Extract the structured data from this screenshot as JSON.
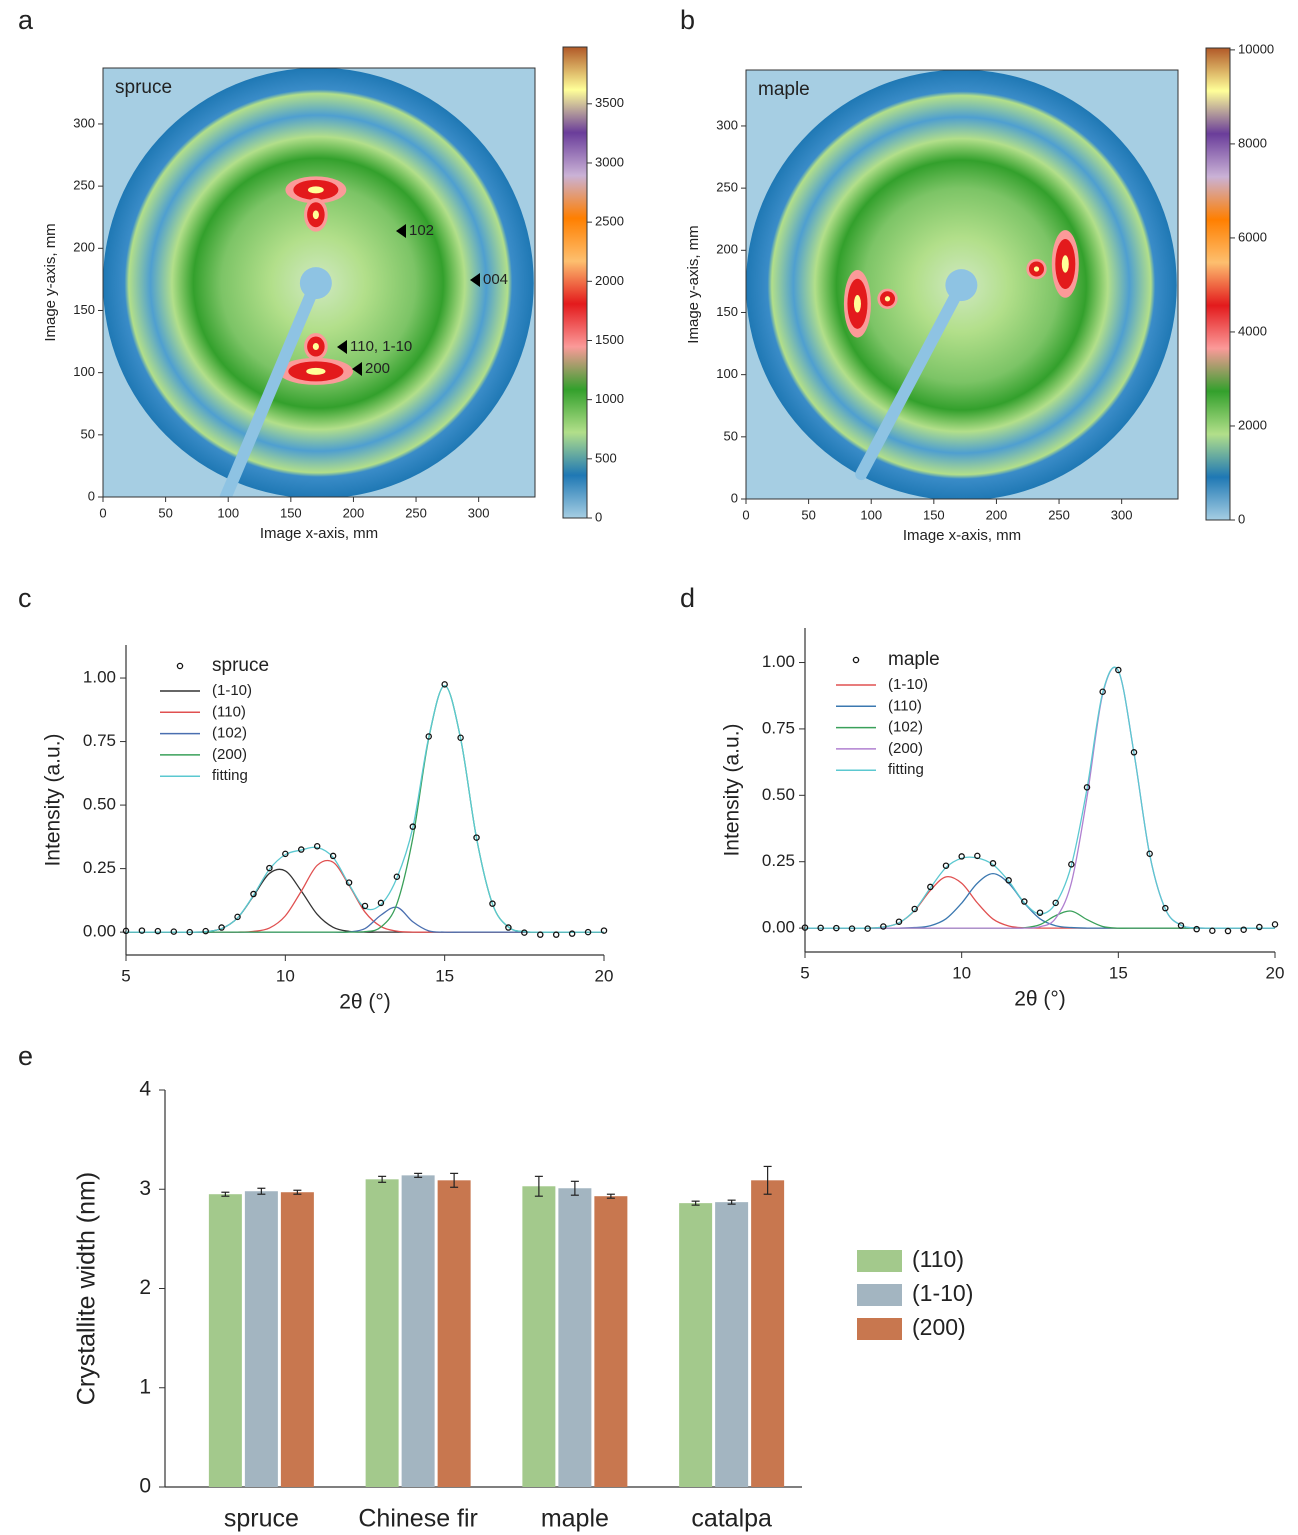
{
  "chart_data": [
    {
      "type": "heatmap",
      "panel": "a",
      "label": "spruce",
      "xlabel": "Image x-axis, mm",
      "ylabel": "Image y-axis, mm",
      "xlim": [
        0,
        345
      ],
      "xticks": [
        0,
        50,
        100,
        150,
        200,
        250,
        300
      ],
      "ylim": [
        0,
        345
      ],
      "yticks": [
        0,
        50,
        100,
        150,
        200,
        250,
        300
      ],
      "annotations": [
        "102",
        "004",
        "110, 1-10",
        "200"
      ],
      "colorbar": {
        "lim": [
          0,
          3980
        ],
        "ticks": [
          0,
          500,
          1000,
          1500,
          2000,
          2500,
          3000,
          3500
        ],
        "colors": [
          "#a6cee3",
          "#1f78b4",
          "#b2df8a",
          "#33a02c",
          "#fb9a99",
          "#e31a1c",
          "#fdbf6f",
          "#ff7f00",
          "#cab2d6",
          "#6a3d9a",
          "#ffff99",
          "#b15928"
        ]
      }
    },
    {
      "type": "heatmap",
      "panel": "b",
      "label": "maple",
      "xlabel": "Image x-axis, mm",
      "ylabel": "Image y-axis, mm",
      "xlim": [
        0,
        345
      ],
      "xticks": [
        0,
        50,
        100,
        150,
        200,
        250,
        300
      ],
      "ylim": [
        0,
        345
      ],
      "yticks": [
        0,
        50,
        100,
        150,
        200,
        250,
        300
      ],
      "annotations": [],
      "colorbar": {
        "lim": [
          0,
          10040
        ],
        "ticks": [
          0,
          2000,
          4000,
          6000,
          8000,
          10000
        ],
        "colors": [
          "#a6cee3",
          "#1f78b4",
          "#b2df8a",
          "#33a02c",
          "#fb9a99",
          "#e31a1c",
          "#fdbf6f",
          "#ff7f00",
          "#cab2d6",
          "#6a3d9a",
          "#ffff99",
          "#b15928"
        ]
      }
    },
    {
      "type": "line",
      "panel": "c",
      "xlabel": "2θ (°)",
      "ylabel": "Intensity (a.u.)",
      "x": [
        5,
        5.5,
        6,
        6.5,
        7,
        7.5,
        8,
        8.5,
        9,
        9.5,
        10,
        10.5,
        11,
        11.5,
        12,
        12.5,
        13,
        13.5,
        14,
        14.5,
        15,
        15.5,
        16,
        16.5,
        17,
        17.5,
        18,
        18.5,
        19,
        19.5,
        20
      ],
      "xlim": [
        5,
        20
      ],
      "xticks": [
        5,
        10,
        15,
        20
      ],
      "ylim": [
        -0.09,
        1.13
      ],
      "yticks": [
        {
          "value": 0,
          "label": "0.00"
        },
        0.25,
        {
          "value": 0.5,
          "label": "0.50"
        },
        0.75,
        {
          "value": 1,
          "label": "1.00"
        }
      ],
      "series": [
        {
          "name": "spruce",
          "color": "#111111",
          "marker": "circle",
          "values": [
            0.005,
            0.006,
            0.004,
            0.002,
            0.0,
            0.004,
            0.018,
            0.06,
            0.15,
            0.252,
            0.308,
            0.325,
            0.338,
            0.3,
            0.195,
            0.103,
            0.115,
            0.218,
            0.415,
            0.77,
            0.975,
            0.765,
            0.372,
            0.112,
            0.018,
            -0.002,
            -0.01,
            -0.01,
            -0.006,
            0.0,
            0.006
          ]
        },
        {
          "name": "(1-10)",
          "color": "#333333",
          "values": [
            0,
            0,
            0,
            0,
            0,
            0.002,
            0.014,
            0.056,
            0.142,
            0.231,
            0.241,
            0.162,
            0.07,
            0.019,
            0.003,
            0,
            0,
            0,
            0,
            0,
            0,
            0,
            0,
            0,
            0,
            0,
            0,
            0,
            0,
            0,
            0
          ]
        },
        {
          "name": "(110)",
          "color": "#e05050",
          "values": [
            0,
            0,
            0,
            0,
            0,
            0,
            0,
            0,
            0.003,
            0.016,
            0.064,
            0.161,
            0.263,
            0.275,
            0.184,
            0.079,
            0.022,
            0.004,
            0,
            0,
            0,
            0,
            0,
            0,
            0,
            0,
            0,
            0,
            0,
            0,
            0
          ]
        },
        {
          "name": "(102)",
          "color": "#4a6fb0",
          "values": [
            0,
            0,
            0,
            0,
            0,
            0,
            0,
            0,
            0,
            0,
            0,
            0,
            0,
            0,
            0.001,
            0.014,
            0.067,
            0.098,
            0.041,
            0.005,
            0,
            0,
            0,
            0,
            0,
            0,
            0,
            0,
            0,
            0,
            0
          ]
        },
        {
          "name": "(200)",
          "color": "#3aa05a",
          "values": [
            0,
            0,
            0,
            0,
            0,
            0,
            0,
            0,
            0,
            0,
            0,
            0,
            0,
            0,
            0,
            0.002,
            0.02,
            0.111,
            0.37,
            0.762,
            0.97,
            0.762,
            0.37,
            0.111,
            0.02,
            0.002,
            0,
            0,
            0,
            0,
            0
          ]
        },
        {
          "name": "fitting",
          "color": "#5bc8d0",
          "values": [
            0,
            0,
            0,
            0,
            0,
            0.002,
            0.014,
            0.056,
            0.145,
            0.247,
            0.305,
            0.323,
            0.333,
            0.294,
            0.188,
            0.095,
            0.109,
            0.213,
            0.411,
            0.767,
            0.97,
            0.762,
            0.37,
            0.111,
            0.02,
            0.002,
            0,
            0,
            0,
            0,
            0
          ]
        }
      ]
    },
    {
      "type": "line",
      "panel": "d",
      "xlabel": "2θ (°)",
      "ylabel": "Intensity (a.u.)",
      "x": [
        5,
        5.5,
        6,
        6.5,
        7,
        7.5,
        8,
        8.5,
        9,
        9.5,
        10,
        10.5,
        11,
        11.5,
        12,
        12.5,
        13,
        13.5,
        14,
        14.5,
        15,
        15.5,
        16,
        16.5,
        17,
        17.5,
        18,
        18.5,
        19,
        19.5,
        20
      ],
      "xlim": [
        5,
        20
      ],
      "xticks": [
        5,
        10,
        15,
        20
      ],
      "ylim": [
        -0.09,
        1.13
      ],
      "yticks": [
        {
          "value": 0,
          "label": "0.00"
        },
        0.25,
        {
          "value": 0.5,
          "label": "0.50"
        },
        0.75,
        {
          "value": 1,
          "label": "1.00"
        }
      ],
      "series": [
        {
          "name": "maple",
          "color": "#111111",
          "marker": "circle",
          "values": [
            0.002,
            0.001,
            0.0,
            -0.002,
            -0.002,
            0.006,
            0.024,
            0.072,
            0.155,
            0.235,
            0.27,
            0.272,
            0.244,
            0.18,
            0.1,
            0.058,
            0.095,
            0.24,
            0.53,
            0.89,
            0.972,
            0.662,
            0.28,
            0.075,
            0.01,
            -0.004,
            -0.01,
            -0.011,
            -0.006,
            0.004,
            0.014
          ]
        },
        {
          "name": "(1-10)",
          "color": "#e05050",
          "values": [
            0,
            0,
            0,
            0,
            0,
            0.004,
            0.02,
            0.066,
            0.142,
            0.193,
            0.169,
            0.095,
            0.034,
            0.008,
            0.001,
            0,
            0,
            0,
            0,
            0,
            0,
            0,
            0,
            0,
            0,
            0,
            0,
            0,
            0,
            0,
            0
          ]
        },
        {
          "name": "(110)",
          "color": "#3b78b0",
          "values": [
            0,
            0,
            0,
            0,
            0,
            0,
            0,
            0.002,
            0.009,
            0.035,
            0.094,
            0.169,
            0.205,
            0.169,
            0.094,
            0.035,
            0.009,
            0.002,
            0,
            0,
            0,
            0,
            0,
            0,
            0,
            0,
            0,
            0,
            0,
            0,
            0
          ]
        },
        {
          "name": "(102)",
          "color": "#3aa05a",
          "values": [
            0,
            0,
            0,
            0,
            0,
            0,
            0,
            0,
            0,
            0,
            0,
            0,
            0,
            0,
            0.001,
            0.013,
            0.047,
            0.064,
            0.032,
            0.006,
            0,
            0,
            0,
            0,
            0,
            0,
            0,
            0,
            0,
            0,
            0
          ]
        },
        {
          "name": "(200)",
          "color": "#b080d0",
          "values": [
            0,
            0,
            0,
            0,
            0,
            0,
            0,
            0,
            0,
            0,
            0,
            0,
            0,
            0,
            0,
            0.005,
            0.037,
            0.17,
            0.493,
            0.88,
            0.969,
            0.659,
            0.277,
            0.072,
            0.011,
            0.001,
            0,
            0,
            0,
            0,
            0
          ]
        },
        {
          "name": "fitting",
          "color": "#5bc8d0",
          "values": [
            0,
            0,
            0,
            0,
            0,
            0.004,
            0.02,
            0.068,
            0.151,
            0.228,
            0.263,
            0.264,
            0.239,
            0.177,
            0.096,
            0.053,
            0.093,
            0.236,
            0.525,
            0.886,
            0.969,
            0.659,
            0.277,
            0.072,
            0.011,
            0.001,
            0,
            0,
            0,
            0,
            0
          ]
        }
      ]
    },
    {
      "type": "bar",
      "panel": "e",
      "ylabel": "Crystallite width (nm)",
      "categories": [
        "spruce",
        "Chinese fir",
        "maple",
        "catalpa"
      ],
      "ylim": [
        0,
        4
      ],
      "yticks": [
        0,
        1,
        2,
        3,
        4
      ],
      "series": [
        {
          "name": "(110)",
          "color": "#a3c98c",
          "values": [
            2.95,
            3.1,
            3.03,
            2.86
          ],
          "errors": [
            0.02,
            0.03,
            0.1,
            0.02
          ]
        },
        {
          "name": "(1-10)",
          "color": "#a3b5c1",
          "values": [
            2.98,
            3.14,
            3.01,
            2.87
          ],
          "errors": [
            0.03,
            0.02,
            0.07,
            0.02
          ]
        },
        {
          "name": "(200)",
          "color": "#c8774f",
          "values": [
            2.97,
            3.09,
            2.93,
            3.09
          ],
          "errors": [
            0.02,
            0.07,
            0.02,
            0.14
          ]
        }
      ]
    }
  ]
}
